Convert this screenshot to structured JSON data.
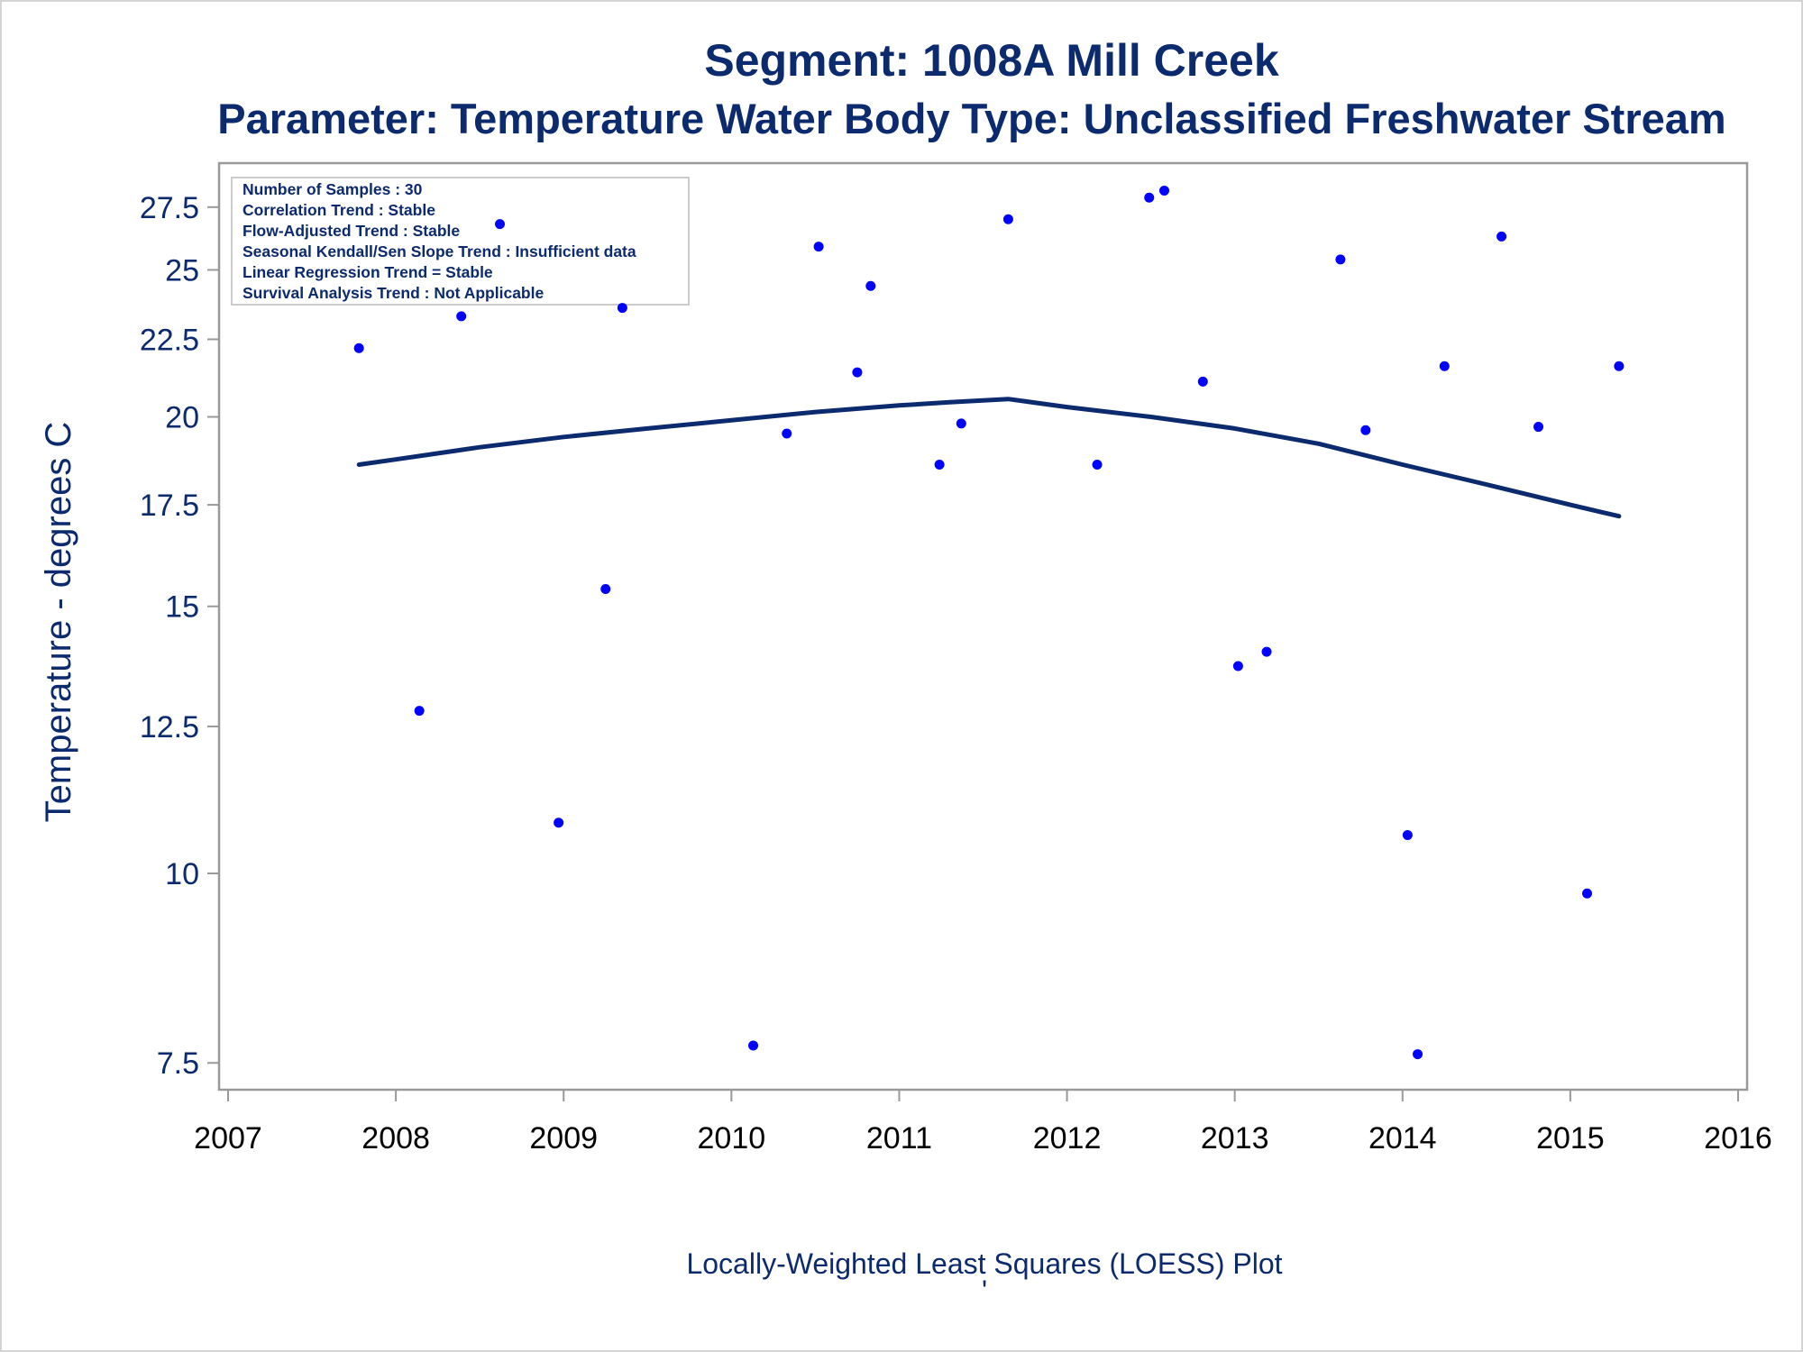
{
  "title_line1": "Segment: 1008A  Mill Creek",
  "title_line2": "Parameter: Temperature   Water Body Type: Unclassified Freshwater Stream",
  "inset_lines": [
    "Number of Samples : 30",
    "Correlation Trend : Stable",
    "Flow-Adjusted Trend : Stable",
    "Seasonal Kendall/Sen Slope Trend : Insufficient data",
    "Linear Regression Trend = Stable",
    "Survival Analysis Trend : Not Applicable"
  ],
  "footer": "Locally-Weighted Least Squares (LOESS) Plot",
  "footer_mark": "'",
  "colors": {
    "text": "#0c2a6e",
    "points": "#0000ff",
    "loess": "#0c2a6e",
    "frame": "#999999"
  },
  "chart_data": {
    "type": "scatter",
    "ylabel": "Temperature - degrees C",
    "y_scale": "log",
    "xlim": [
      2007,
      2016
    ],
    "ylim": [
      7.3,
      29.0
    ],
    "x_ticks": [
      "2007",
      "2008",
      "2009",
      "2010",
      "2011",
      "2012",
      "2013",
      "2014",
      "2015",
      "2016"
    ],
    "y_ticks": [
      "7.5",
      "10",
      "12.5",
      "15",
      "17.5",
      "20",
      "22.5",
      "25",
      "27.5"
    ],
    "points": [
      [
        2007.78,
        22.2
      ],
      [
        2008.14,
        12.8
      ],
      [
        2008.39,
        23.3
      ],
      [
        2008.62,
        26.8
      ],
      [
        2008.97,
        10.8
      ],
      [
        2009.25,
        15.4
      ],
      [
        2009.35,
        23.6
      ],
      [
        2010.13,
        7.7
      ],
      [
        2010.33,
        19.5
      ],
      [
        2010.52,
        25.9
      ],
      [
        2010.75,
        21.4
      ],
      [
        2010.83,
        24.4
      ],
      [
        2011.24,
        18.6
      ],
      [
        2011.37,
        19.8
      ],
      [
        2011.65,
        27.0
      ],
      [
        2012.18,
        18.6
      ],
      [
        2012.49,
        27.9
      ],
      [
        2012.58,
        28.2
      ],
      [
        2012.81,
        21.1
      ],
      [
        2013.02,
        13.7
      ],
      [
        2013.19,
        14.0
      ],
      [
        2013.63,
        25.4
      ],
      [
        2013.78,
        19.6
      ],
      [
        2014.03,
        10.6
      ],
      [
        2014.09,
        7.6
      ],
      [
        2014.25,
        21.6
      ],
      [
        2014.59,
        26.3
      ],
      [
        2014.81,
        19.7
      ],
      [
        2015.1,
        9.7
      ],
      [
        2015.29,
        21.6
      ]
    ],
    "loess": [
      [
        2007.78,
        18.6
      ],
      [
        2008.0,
        18.75
      ],
      [
        2008.5,
        19.1
      ],
      [
        2009.0,
        19.4
      ],
      [
        2009.5,
        19.65
      ],
      [
        2010.0,
        19.9
      ],
      [
        2010.5,
        20.15
      ],
      [
        2011.0,
        20.35
      ],
      [
        2011.3,
        20.45
      ],
      [
        2011.65,
        20.55
      ],
      [
        2012.0,
        20.3
      ],
      [
        2012.5,
        20.0
      ],
      [
        2013.0,
        19.65
      ],
      [
        2013.5,
        19.2
      ],
      [
        2014.0,
        18.6
      ],
      [
        2014.5,
        18.05
      ],
      [
        2015.0,
        17.5
      ],
      [
        2015.29,
        17.2
      ]
    ]
  }
}
